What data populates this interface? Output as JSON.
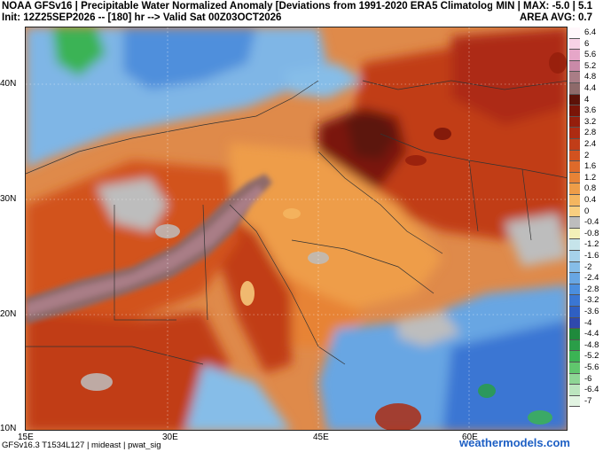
{
  "header": {
    "line1": "NOAA GFSv16 | Precipitable Water Normalized Anomaly [Deviations from 1991-2020 ERA5 Climatology]",
    "line1_right": "MIN | MAX: -5.0 | 5.1",
    "line2": "Init: 12Z25SEP2026 -- [180] hr --> Valid Sat 00Z03OCT2026",
    "line2_right": "AREA AVG: 0.7"
  },
  "map": {
    "lat_labels": [
      "40N",
      "30N",
      "20N",
      "10N"
    ],
    "lon_labels": [
      "15E",
      "30E",
      "45E",
      "60E"
    ]
  },
  "colorbar": {
    "labels": [
      "6.4",
      "6",
      "5.6",
      "5.2",
      "4.8",
      "4.4",
      "4",
      "3.6",
      "3.2",
      "2.8",
      "2.4",
      "2",
      "1.6",
      "1.2",
      "0.8",
      "0.4",
      "0",
      "-0.4",
      "-0.8",
      "-1.2",
      "-1.6",
      "-2",
      "-2.4",
      "-2.8",
      "-3.2",
      "-3.6",
      "-4",
      "-4.4",
      "-4.8",
      "-5.2",
      "-5.6",
      "-6",
      "-6.4",
      "-7"
    ],
    "colors": [
      "#fff7fb",
      "#f7d2e6",
      "#e6a6c8",
      "#c98aa8",
      "#a97d86",
      "#8e6a6a",
      "#5c1208",
      "#7a1508",
      "#951e0c",
      "#ad2b12",
      "#c13d18",
      "#d2521f",
      "#de6a2a",
      "#e78336",
      "#ee9d48",
      "#f4b660",
      "#f9cf80",
      "#bdbdbd",
      "#f2f0b8",
      "#c6e4ea",
      "#a6d1ea",
      "#86bde8",
      "#68a6e3",
      "#4b8ede",
      "#3a76d3",
      "#2f5fc2",
      "#2f49ad",
      "#1f8a3c",
      "#2a9e48",
      "#3bb354",
      "#60c66d",
      "#8ed695",
      "#bce6bf",
      "#e2f4e2"
    ]
  },
  "footer": {
    "left": "GFSv16.3 T1534L127 | mideast | pwat_sig",
    "right": "weathermodels.com"
  }
}
